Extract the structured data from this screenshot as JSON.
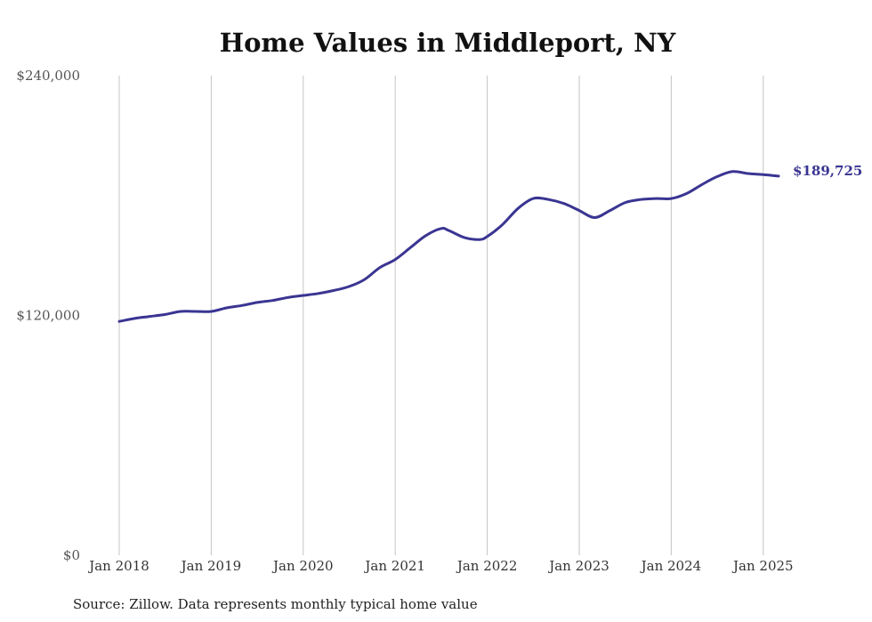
{
  "chart_data": {
    "type": "line",
    "title": "Home Values in Middleport, NY",
    "source": "Source: Zillow. Data represents monthly typical home value",
    "ylim": [
      0,
      240000
    ],
    "y_ticks": [
      {
        "value": 0,
        "label": "$0"
      },
      {
        "value": 120000,
        "label": "$120,000"
      },
      {
        "value": 240000,
        "label": "$240,000"
      }
    ],
    "x_ticks": [
      {
        "value": "2018-01",
        "label": "Jan 2018"
      },
      {
        "value": "2019-01",
        "label": "Jan 2019"
      },
      {
        "value": "2020-01",
        "label": "Jan 2020"
      },
      {
        "value": "2021-01",
        "label": "Jan 2021"
      },
      {
        "value": "2022-01",
        "label": "Jan 2022"
      },
      {
        "value": "2023-01",
        "label": "Jan 2023"
      },
      {
        "value": "2024-01",
        "label": "Jan 2024"
      },
      {
        "value": "2025-01",
        "label": "Jan 2025"
      }
    ],
    "grid": "vertical",
    "color": "#3a3592",
    "end_label": "$189,725",
    "series": [
      {
        "values": [
          [
            "2018-01",
            117000
          ],
          [
            "2018-03",
            118500
          ],
          [
            "2018-05",
            119500
          ],
          [
            "2018-07",
            120500
          ],
          [
            "2018-09",
            122000
          ],
          [
            "2018-11",
            122000
          ],
          [
            "2019-01",
            122000
          ],
          [
            "2019-03",
            123800
          ],
          [
            "2019-05",
            125000
          ],
          [
            "2019-07",
            126500
          ],
          [
            "2019-09",
            127500
          ],
          [
            "2019-11",
            129000
          ],
          [
            "2020-01",
            130000
          ],
          [
            "2020-03",
            131000
          ],
          [
            "2020-05",
            132500
          ],
          [
            "2020-07",
            134500
          ],
          [
            "2020-09",
            138000
          ],
          [
            "2020-11",
            144000
          ],
          [
            "2021-01",
            148000
          ],
          [
            "2021-03",
            154000
          ],
          [
            "2021-05",
            160000
          ],
          [
            "2021-07",
            163500
          ],
          [
            "2021-08",
            162500
          ],
          [
            "2021-10",
            159000
          ],
          [
            "2021-12",
            158000
          ],
          [
            "2022-01",
            159500
          ],
          [
            "2022-03",
            165500
          ],
          [
            "2022-05",
            173500
          ],
          [
            "2022-07",
            178500
          ],
          [
            "2022-09",
            178000
          ],
          [
            "2022-11",
            176000
          ],
          [
            "2023-01",
            172500
          ],
          [
            "2023-03",
            169000
          ],
          [
            "2023-05",
            172500
          ],
          [
            "2023-07",
            176500
          ],
          [
            "2023-09",
            178000
          ],
          [
            "2023-11",
            178500
          ],
          [
            "2024-01",
            178500
          ],
          [
            "2024-03",
            181000
          ],
          [
            "2024-05",
            185500
          ],
          [
            "2024-07",
            189500
          ],
          [
            "2024-09",
            192000
          ],
          [
            "2024-11",
            191000
          ],
          [
            "2025-01",
            190500
          ],
          [
            "2025-03",
            189725
          ]
        ]
      }
    ]
  }
}
